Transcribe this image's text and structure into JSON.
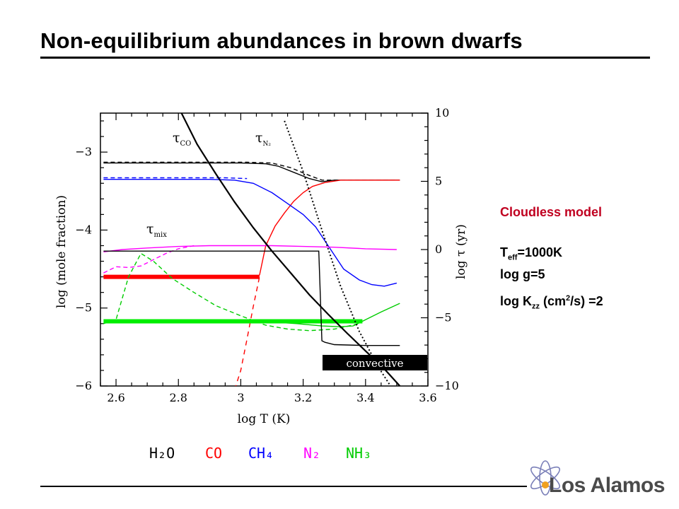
{
  "slide": {
    "title": "Non-equilibrium abundances in brown dwarfs",
    "side_model": "Cloudless model",
    "teff_base": "T",
    "teff_sub": "eff",
    "teff_value": "=1000K",
    "logg": "log g=5",
    "kzz_base": "log K",
    "kzz_sub": "zz",
    "kzz_mid": " (cm",
    "kzz_sup": "2",
    "kzz_end": "/s) =2",
    "logo_text": "Los Alamos"
  },
  "chart_data": {
    "type": "line",
    "xlabel": "log T (K)",
    "ylabel_left": "log (mole fraction)",
    "ylabel_right": "log τ (yr)",
    "xlim": [
      2.55,
      3.6
    ],
    "ylim_left": [
      -6,
      -2.5
    ],
    "ylim_right": [
      -10,
      10
    ],
    "x_ticks": [
      "2.6",
      "2.8",
      "3",
      "3.2",
      "3.4",
      "3.6"
    ],
    "y_left_ticks": [
      "−3",
      "−4",
      "−5",
      "−6"
    ],
    "y_right_ticks": [
      "10",
      "5",
      "0",
      "−5",
      "−10"
    ],
    "timescale_labels": [
      {
        "base": "τ",
        "sub": "CO"
      },
      {
        "base": "τ",
        "sub": "N₂"
      },
      {
        "base": "τ",
        "sub": "mix"
      }
    ],
    "convective_label": "convective",
    "legend": [
      {
        "label": "H₂O",
        "color": "#000000"
      },
      {
        "label": "CO",
        "color": "#ff0000"
      },
      {
        "label": "CH₄",
        "color": "#0000ff"
      },
      {
        "label": "N₂",
        "color": "#ff00ff"
      },
      {
        "label": "NH₃",
        "color": "#00cc00"
      }
    ],
    "series": [
      {
        "name": "H₂O",
        "color": "#000000",
        "dash": "",
        "x": [
          2.56,
          3.0,
          3.08,
          3.12,
          3.17,
          3.22,
          3.26,
          3.3,
          3.35,
          3.4,
          3.45,
          3.5,
          3.51
        ],
        "y": [
          -3.14,
          -3.14,
          -3.15,
          -3.18,
          -3.26,
          -3.34,
          -3.38,
          -3.36,
          -3.36,
          -3.36,
          -3.36,
          -3.36,
          -3.36
        ]
      },
      {
        "name": "H₂O",
        "color": "#000000",
        "dash": "6,4",
        "x": [
          2.56,
          3.02,
          3.1,
          3.16,
          3.22,
          3.26,
          3.3,
          3.5
        ],
        "y": [
          -3.13,
          -3.13,
          -3.14,
          -3.2,
          -3.3,
          -3.36,
          -3.36,
          -3.36
        ]
      },
      {
        "name": "CO",
        "color": "#ff0000",
        "dash": "",
        "x": [
          3.06,
          3.08,
          3.11,
          3.14,
          3.17,
          3.2,
          3.23,
          3.27,
          3.32,
          3.38,
          3.45,
          3.51
        ],
        "y": [
          -4.58,
          -4.2,
          -3.95,
          -3.78,
          -3.63,
          -3.52,
          -3.44,
          -3.39,
          -3.36,
          -3.36,
          -3.36,
          -3.36
        ]
      },
      {
        "name": "CO",
        "color": "#ff0000",
        "dash": "7,6",
        "x": [
          2.98,
          3.0,
          3.02,
          3.04,
          3.06
        ],
        "y": [
          -6.05,
          -5.8,
          -5.4,
          -4.98,
          -4.6
        ]
      },
      {
        "name": "CO",
        "color": "#ff0000",
        "dash": "",
        "width": 6,
        "x": [
          2.56,
          3.06
        ],
        "y": [
          -4.6,
          -4.6
        ]
      },
      {
        "name": "CH₄",
        "color": "#0000ff",
        "dash": "",
        "x": [
          2.56,
          2.9,
          2.98,
          3.04,
          3.1,
          3.15,
          3.2,
          3.24,
          3.28,
          3.33,
          3.38,
          3.42,
          3.46,
          3.5
        ],
        "y": [
          -3.35,
          -3.35,
          -3.36,
          -3.4,
          -3.52,
          -3.66,
          -3.8,
          -3.96,
          -4.2,
          -4.5,
          -4.64,
          -4.7,
          -4.72,
          -4.68
        ]
      },
      {
        "name": "CH₄",
        "color": "#0000ff",
        "dash": "6,4",
        "x": [
          2.56,
          2.95,
          3.02
        ],
        "y": [
          -3.33,
          -3.33,
          -3.34
        ]
      },
      {
        "name": "N₂",
        "color": "#ff00ff",
        "dash": "",
        "x": [
          2.56,
          2.62,
          2.7,
          2.8,
          2.9,
          3.0,
          3.1,
          3.2,
          3.3,
          3.4,
          3.5
        ],
        "y": [
          -4.28,
          -4.25,
          -4.23,
          -4.21,
          -4.2,
          -4.2,
          -4.2,
          -4.21,
          -4.22,
          -4.24,
          -4.25
        ]
      },
      {
        "name": "N₂",
        "color": "#ff00ff",
        "dash": "6,4",
        "x": [
          2.56,
          2.6,
          2.64,
          2.68,
          2.72,
          2.76,
          2.8,
          2.85
        ],
        "y": [
          -4.55,
          -4.47,
          -4.48,
          -4.46,
          -4.38,
          -4.3,
          -4.24,
          -4.2
        ]
      },
      {
        "name": "NH₃",
        "color": "#00cc00",
        "dash": "",
        "x": [
          3.1,
          3.18,
          3.26,
          3.32,
          3.36,
          3.4,
          3.45,
          3.51
        ],
        "y": [
          -5.18,
          -5.2,
          -5.23,
          -5.24,
          -5.23,
          -5.15,
          -5.05,
          -4.94
        ]
      },
      {
        "name": "NH₃",
        "color": "#00cc00",
        "dash": "6,4",
        "x": [
          2.56,
          2.6,
          2.64,
          2.68,
          2.72,
          2.78,
          2.85,
          2.92,
          3.0,
          3.08,
          3.15,
          3.22,
          3.3,
          3.38
        ],
        "y": [
          -5.2,
          -5.15,
          -4.6,
          -4.3,
          -4.4,
          -4.62,
          -4.8,
          -4.97,
          -5.1,
          -5.22,
          -5.27,
          -5.29,
          -5.27,
          -5.2
        ]
      },
      {
        "name": "NH₃",
        "color": "#00ee00",
        "dash": "",
        "width": 6,
        "x": [
          2.56,
          3.39
        ],
        "y": [
          -5.17,
          -5.17
        ]
      },
      {
        "name": "τ_mix",
        "color": "#000000",
        "dash": "",
        "x": [
          2.56,
          3.25,
          3.26,
          3.27,
          3.3,
          3.4,
          3.51
        ],
        "y": [
          -4.27,
          -4.27,
          -5.42,
          -5.44,
          -5.47,
          -5.48,
          -5.48
        ]
      },
      {
        "name": "τ_CO",
        "color": "#000000",
        "dash": "",
        "width": 2.2,
        "x": [
          2.81,
          2.86,
          2.92,
          2.98,
          3.04,
          3.1,
          3.16,
          3.22,
          3.28,
          3.34,
          3.4,
          3.46,
          3.51
        ],
        "y": [
          -2.5,
          -2.9,
          -3.28,
          -3.64,
          -3.97,
          -4.27,
          -4.55,
          -4.83,
          -5.08,
          -5.32,
          -5.55,
          -5.78,
          -6.0
        ]
      },
      {
        "name": "τ_N₂",
        "color": "#000000",
        "dash": "2,3",
        "width": 2,
        "x": [
          3.14,
          3.2,
          3.26,
          3.32,
          3.38,
          3.44,
          3.48
        ],
        "y": [
          -2.6,
          -3.25,
          -4.0,
          -4.72,
          -5.3,
          -5.75,
          -6.0
        ]
      }
    ]
  }
}
